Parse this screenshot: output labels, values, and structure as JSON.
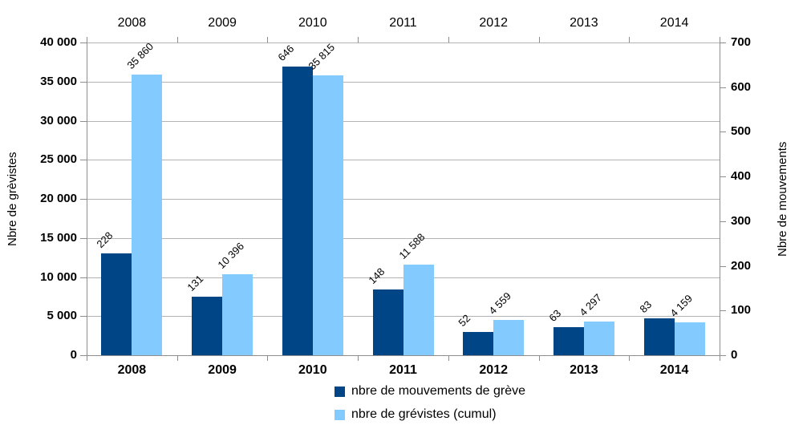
{
  "chart_data": {
    "type": "bar",
    "categories": [
      "2008",
      "2009",
      "2010",
      "2011",
      "2012",
      "2013",
      "2014"
    ],
    "series": [
      {
        "name": "nbre de mouvements de grève",
        "axis": "right",
        "color": "#004586",
        "values": [
          228,
          131,
          646,
          148,
          52,
          63,
          83
        ],
        "data_labels": [
          "228",
          "131",
          "646",
          "148",
          "52",
          "63",
          "83"
        ]
      },
      {
        "name": "nbre de grévistes (cumul)",
        "axis": "left",
        "color": "#83CAFF",
        "values": [
          35860,
          10396,
          35815,
          11588,
          4559,
          4297,
          4159
        ],
        "data_labels": [
          "35 860",
          "10 396",
          "35 815",
          "11 588",
          "4 559",
          "4 297",
          "4 159"
        ]
      }
    ],
    "left_axis": {
      "title": "Nbre de grèvistes",
      "min": 0,
      "max": 40000,
      "step": 5000,
      "tick_labels": [
        "0",
        "5 000",
        "10 000",
        "15 000",
        "20 000",
        "25 000",
        "30 000",
        "35 000",
        "40 000"
      ]
    },
    "right_axis": {
      "title": "Nbre de mouvements",
      "min": 0,
      "max": 700,
      "step": 100,
      "tick_labels": [
        "0",
        "100",
        "200",
        "300",
        "400",
        "500",
        "600",
        "700"
      ]
    },
    "x_axis": {
      "top_labels": [
        "2008",
        "2009",
        "2010",
        "2011",
        "2012",
        "2013",
        "2014"
      ],
      "bottom_labels": [
        "2008",
        "2009",
        "2010",
        "2011",
        "2012",
        "2013",
        "2014"
      ]
    },
    "legend": {
      "position": "bottom",
      "entries": [
        {
          "label": "nbre de mouvements de grève",
          "color": "#004586"
        },
        {
          "label": "nbre de grévistes (cumul)",
          "color": "#83CAFF"
        }
      ]
    },
    "grid": {
      "horizontal": true,
      "color": "#b3b3b3"
    },
    "colors": {
      "axis_line": "#8e8e8e",
      "text": "#000000",
      "background": "#ffffff"
    }
  }
}
